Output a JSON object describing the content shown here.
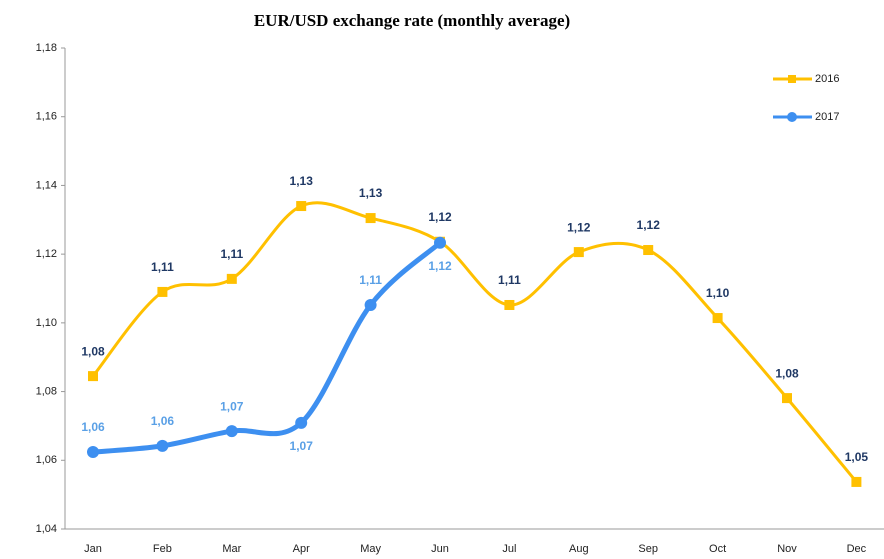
{
  "chart_data": {
    "type": "line",
    "title": "EUR/USD exchange rate (monthly average)",
    "categories": [
      "Jan",
      "Feb",
      "Mar",
      "Apr",
      "May",
      "Jun",
      "Jul",
      "Aug",
      "Sep",
      "Oct",
      "Nov",
      "Dec"
    ],
    "series": [
      {
        "name": "2016",
        "color": "#ffc000",
        "marker": "square",
        "label_color": "#1f3864",
        "values": [
          1.0845,
          1.109,
          1.1128,
          1.134,
          1.1305,
          1.1236,
          1.1052,
          1.1206,
          1.1212,
          1.1014,
          1.0781,
          1.0537
        ],
        "value_labels": [
          "1,08",
          "1,11",
          "1,11",
          "1,13",
          "1,13",
          "1,12",
          "1,11",
          "1,12",
          "1,12",
          "1,10",
          "1,08",
          "1,05"
        ]
      },
      {
        "name": "2017",
        "color": "#3d8ff0",
        "marker": "circle",
        "label_color": "#5aa0e6",
        "values": [
          1.0624,
          1.0642,
          1.0685,
          1.0709,
          1.1052,
          1.1233,
          null,
          null,
          null,
          null,
          null,
          null
        ],
        "value_labels": [
          "1,06",
          "1,06",
          "1,07",
          "1,07",
          "1,11",
          "1,12",
          null,
          null,
          null,
          null,
          null,
          null
        ]
      }
    ],
    "ylim": [
      1.04,
      1.18
    ],
    "yticks": [
      {
        "value": 1.04,
        "label": "1,04"
      },
      {
        "value": 1.06,
        "label": "1,06"
      },
      {
        "value": 1.08,
        "label": "1,08"
      },
      {
        "value": 1.1,
        "label": "1,10"
      },
      {
        "value": 1.12,
        "label": "1,12"
      },
      {
        "value": 1.14,
        "label": "1,14"
      },
      {
        "value": 1.16,
        "label": "1,16"
      },
      {
        "value": 1.18,
        "label": "1,18"
      }
    ],
    "grid": false,
    "legend": "top-right"
  }
}
